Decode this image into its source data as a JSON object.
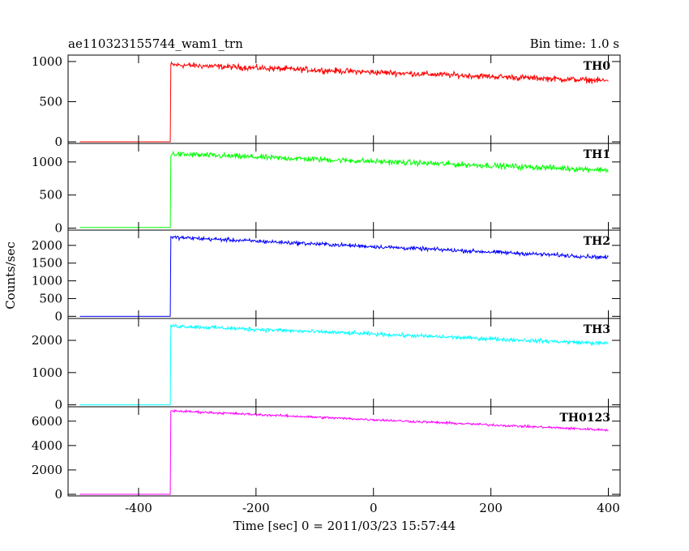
{
  "header": {
    "title": "ae110323155744_wam1_trn",
    "bin_time": "Bin time: 1.0 s"
  },
  "chart_data": {
    "type": "line",
    "xlabel": "Time [sec] 0 = 2011/03/23 15:57:44",
    "ylabel": "Counts/sec",
    "xlim": [
      -520,
      420
    ],
    "xticks": [
      -400,
      -200,
      0,
      200,
      400
    ],
    "trigger_time": -345,
    "x_start": -500,
    "x_end": 400,
    "panels": [
      {
        "name": "TH0",
        "color": "#ff0000",
        "ylim": [
          -20,
          1080
        ],
        "yticks": [
          0,
          500,
          1000
        ],
        "pre_level": 0,
        "start_level": 960,
        "end_level": 760,
        "noise": 30
      },
      {
        "name": "TH1",
        "color": "#00ff00",
        "ylim": [
          -30,
          1280
        ],
        "yticks": [
          0,
          500,
          1000
        ],
        "pre_level": 10,
        "start_level": 1120,
        "end_level": 880,
        "noise": 35
      },
      {
        "name": "TH2",
        "color": "#0000ff",
        "ylim": [
          -60,
          2430
        ],
        "yticks": [
          0,
          500,
          1000,
          1500,
          2000
        ],
        "pre_level": 0,
        "start_level": 2230,
        "end_level": 1660,
        "noise": 45
      },
      {
        "name": "TH3",
        "color": "#00ffff",
        "ylim": [
          -60,
          2680
        ],
        "yticks": [
          0,
          1000,
          2000
        ],
        "pre_level": 0,
        "start_level": 2450,
        "end_level": 1900,
        "noise": 50
      },
      {
        "name": "TH0123",
        "color": "#ff00ff",
        "ylim": [
          -130,
          7180
        ],
        "yticks": [
          0,
          2000,
          4000,
          6000
        ],
        "pre_level": 0,
        "start_level": 6850,
        "end_level": 5270,
        "noise": 80
      }
    ]
  }
}
